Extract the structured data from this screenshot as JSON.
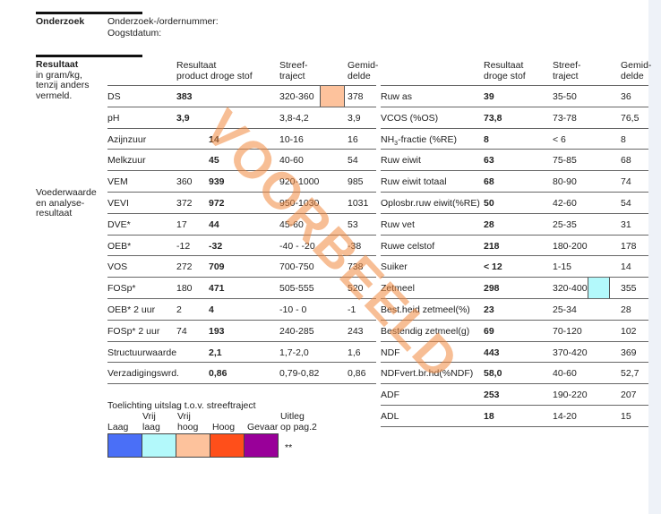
{
  "onderzoek": {
    "title": "Onderzoek",
    "line1": "Onderzoek-/ordernummer:",
    "line2": "Oogstdatum:"
  },
  "resultaat": {
    "title": "Resultaat",
    "sub1": "in gram/kg,",
    "sub2": "tenzij anders",
    "sub3": "vermeld."
  },
  "voederwaarde": {
    "l1": "Voederwaarde",
    "l2": "en analyse-",
    "l3": "resultaat"
  },
  "watermark": "VOORBEELD",
  "left_headers": {
    "r1": "Resultaat",
    "r2": "product droge stof",
    "s1": "Streef-",
    "s2": "traject",
    "g1": "Gemid-",
    "g2": "delde"
  },
  "right_headers": {
    "r1": "Resultaat",
    "r2": "droge stof",
    "s1": "Streef-",
    "s2": "traject",
    "g1": "Gemid-",
    "g2": "delde"
  },
  "left_rows": [
    {
      "label": "DS",
      "product": "",
      "ds": "383",
      "streef": "320-360",
      "gem": "378",
      "flag": "#fdc29c"
    },
    {
      "label": "pH",
      "product": "",
      "ds": "3,9",
      "streef": "3,8-4,2",
      "gem": "3,9"
    },
    {
      "label": "Azijnzuur",
      "product": "",
      "ds": "14",
      "streef": "10-16",
      "gem": "16",
      "indent": true
    },
    {
      "label": "Melkzuur",
      "product": "",
      "ds": "45",
      "streef": "40-60",
      "gem": "54",
      "indent": true
    },
    {
      "label": "VEM",
      "product": "360",
      "ds": "939",
      "streef": "920-1000",
      "gem": "985"
    },
    {
      "label": "VEVI",
      "product": "372",
      "ds": "972",
      "streef": "950-1030",
      "gem": "1031"
    },
    {
      "label": "DVE*",
      "product": "17",
      "ds": "44",
      "streef": "45-60",
      "gem": "53"
    },
    {
      "label": "OEB*",
      "product": "-12",
      "ds": "-32",
      "streef": "-40 - -20",
      "gem": "-38"
    },
    {
      "label": "VOS",
      "product": "272",
      "ds": "709",
      "streef": "700-750",
      "gem": "738"
    },
    {
      "label": "FOSp*",
      "product": "180",
      "ds": "471",
      "streef": "505-555",
      "gem": "520"
    },
    {
      "label": "OEB* 2 uur",
      "product": "2",
      "ds": "4",
      "streef": "-10 - 0",
      "gem": "-1"
    },
    {
      "label": "FOSp* 2 uur",
      "product": "74",
      "ds": "193",
      "streef": "240-285",
      "gem": "243"
    },
    {
      "label": "Structuurwaarde",
      "product": "",
      "ds": "2,1",
      "streef": "1,7-2,0",
      "gem": "1,6",
      "indent": true
    },
    {
      "label": "Verzadigingswrd.",
      "product": "",
      "ds": "0,86",
      "streef": "0,79-0,82",
      "gem": "0,86",
      "indent": true
    }
  ],
  "right_rows": [
    {
      "label": "Ruw as",
      "ds": "39",
      "streef": "35-50",
      "gem": "36"
    },
    {
      "label": "VCOS (%OS)",
      "ds": "73,8",
      "streef": "73-78",
      "gem": "76,5"
    },
    {
      "label": "NH3-fractie (%RE)",
      "ds": "8",
      "streef": "< 6",
      "gem": "8"
    },
    {
      "label": "Ruw eiwit",
      "ds": "63",
      "streef": "75-85",
      "gem": "68"
    },
    {
      "label": "Ruw eiwit totaal",
      "ds": "68",
      "streef": "80-90",
      "gem": "74"
    },
    {
      "label": "Oplosbr.ruw eiwit(%RE)",
      "ds": "50",
      "streef": "42-60",
      "gem": "54"
    },
    {
      "label": "Ruw vet",
      "ds": "28",
      "streef": "25-35",
      "gem": "31"
    },
    {
      "label": "Ruwe celstof",
      "ds": "218",
      "streef": "180-200",
      "gem": "178"
    },
    {
      "label": "Suiker",
      "ds": "< 12",
      "streef": "1-15",
      "gem": "14"
    },
    {
      "label": "Zetmeel",
      "ds": "298",
      "streef": "320-400",
      "gem": "355",
      "flag": "#b3f9fb"
    },
    {
      "label": "Best.heid zetmeel(%)",
      "ds": "23",
      "streef": "25-34",
      "gem": "28"
    },
    {
      "label": "Bestendig zetmeel(g)",
      "ds": "69",
      "streef": "70-120",
      "gem": "102"
    },
    {
      "label": "NDF",
      "ds": "443",
      "streef": "370-420",
      "gem": "369"
    },
    {
      "label": "NDFvert.br.hd(%NDF)",
      "ds": "58,0",
      "streef": "40-60",
      "gem": "52,7"
    },
    {
      "label": "ADF",
      "ds": "253",
      "streef": "190-220",
      "gem": "207"
    },
    {
      "label": "ADL",
      "ds": "18",
      "streef": "14-20",
      "gem": "15"
    }
  ],
  "legend": {
    "title": "Toelichting uitslag t.o.v. streeftraject",
    "items": [
      {
        "l1": "",
        "l2": "Laag",
        "color": "#4a6ff7"
      },
      {
        "l1": "Vrij",
        "l2": "laag",
        "color": "#b3f9fb"
      },
      {
        "l1": "Vrij",
        "l2": "hoog",
        "color": "#fdc29c"
      },
      {
        "l1": "",
        "l2": "Hoog",
        "color": "#ff4f1a"
      },
      {
        "l1": "",
        "l2": "Gevaar",
        "color": "#990099"
      }
    ],
    "uitleg1": "Uitleg",
    "uitleg2": "op pag.2",
    "stars": "**"
  }
}
